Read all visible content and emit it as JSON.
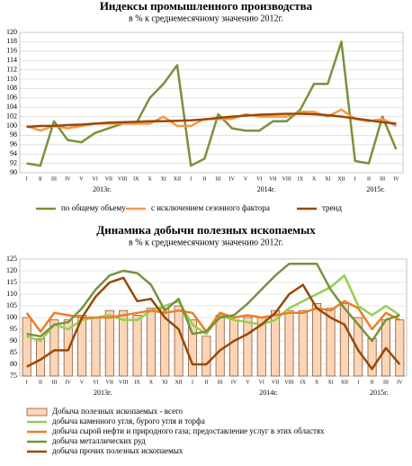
{
  "chart_data": [
    {
      "type": "line",
      "title": "Индексы промышленного производства",
      "subtitle": "в % к среднемесячному значению 2012г.",
      "categories": [
        "I",
        "II",
        "III",
        "IV",
        "V",
        "VI",
        "VII",
        "VIII",
        "IX",
        "X",
        "XI",
        "XII",
        "I",
        "II",
        "III",
        "IV",
        "V",
        "VI",
        "VII",
        "VIII",
        "IX",
        "X",
        "XI",
        "XII",
        "I",
        "II",
        "III",
        "IV"
      ],
      "groups": [
        "2013г.",
        "2014г.",
        "2015г."
      ],
      "ylim": [
        90,
        120
      ],
      "yticks": [
        90,
        92,
        94,
        96,
        98,
        100,
        102,
        104,
        106,
        108,
        110,
        112,
        114,
        116,
        118,
        120
      ],
      "grid": true,
      "legend": "bottom",
      "legend_orientation": "row",
      "series": [
        {
          "name": "по общему объему",
          "type": "line",
          "color": "#77933c",
          "values": [
            92,
            91.5,
            101,
            97,
            96.5,
            98.5,
            99.5,
            100.5,
            100.5,
            106,
            109,
            113,
            91.5,
            93,
            102.5,
            99.5,
            99,
            99,
            101,
            101,
            103.5,
            109,
            109,
            118,
            92.5,
            92,
            102,
            95
          ]
        },
        {
          "name": "с исключением  сезонного фактора",
          "type": "line",
          "color": "#f79646",
          "values": [
            100,
            99,
            100,
            99.5,
            100,
            100.5,
            100.5,
            100.5,
            100.5,
            100.5,
            102,
            100,
            100,
            101.5,
            101.5,
            101.5,
            102.5,
            102,
            102,
            102,
            103,
            103,
            102,
            103.5,
            101.5,
            101,
            101.5,
            100
          ]
        },
        {
          "name": "тренд",
          "type": "line",
          "color": "#984807",
          "values": [
            99.8,
            100,
            100,
            100.2,
            100.3,
            100.5,
            100.7,
            100.8,
            100.9,
            101,
            101,
            101.1,
            101.2,
            101.4,
            101.7,
            102,
            102.2,
            102.4,
            102.5,
            102.6,
            102.6,
            102.5,
            102.3,
            102,
            101.6,
            101.2,
            100.8,
            100.5
          ]
        }
      ]
    },
    {
      "type": "bar",
      "title": "Динамика добычи полезных ископаемых",
      "subtitle": "в % к среднемесячному значению 2012г.",
      "categories": [
        "I",
        "II",
        "III",
        "IV",
        "V",
        "VI",
        "VII",
        "VIII",
        "IX",
        "X",
        "XI",
        "XII",
        "I",
        "II",
        "III",
        "IV",
        "V",
        "VI",
        "VII",
        "VIII",
        "IX",
        "X",
        "XI",
        "XII",
        "I",
        "II",
        "III",
        "IV"
      ],
      "groups": [
        "2013г.",
        "2014г.",
        "2015г."
      ],
      "ylim": [
        75,
        125
      ],
      "yticks": [
        75,
        80,
        85,
        90,
        95,
        100,
        105,
        110,
        115,
        120,
        125
      ],
      "grid": true,
      "legend": "bottom",
      "legend_orientation": "column",
      "series": [
        {
          "name": "Добыча полезных ископаемых - всего",
          "type": "bar",
          "color": "#fbd5b5",
          "values": [
            100,
            91,
            99,
            99,
            101,
            100,
            103,
            103,
            101,
            104,
            104,
            105,
            99,
            92,
            101,
            99,
            100,
            100,
            103,
            103,
            103,
            106,
            104,
            106,
            100,
            91,
            99,
            99
          ]
        },
        {
          "name": "добыча каменного угля, бурого угля и торфа",
          "type": "line",
          "color": "#92d050",
          "values": [
            92,
            90,
            97,
            95,
            99,
            100,
            101,
            99,
            99,
            103,
            105,
            107,
            97,
            93,
            101,
            99,
            98,
            97,
            99,
            104,
            107,
            110,
            113,
            118,
            105,
            101,
            105,
            101
          ]
        },
        {
          "name": "добыча сырой нефти и природного газа; предоставление  услуг в этих областях",
          "type": "line",
          "color": "#f07c22",
          "values": [
            102,
            94,
            102,
            101,
            100,
            100,
            100,
            101,
            102,
            103,
            102,
            103,
            102,
            94,
            102,
            100,
            101,
            100,
            101,
            102,
            102,
            104,
            103,
            107,
            104,
            95,
            102,
            99
          ]
        },
        {
          "name": "добыча металлических руд",
          "type": "line",
          "color": "#77933c",
          "values": [
            93,
            92,
            97,
            98,
            104,
            112,
            118,
            120,
            119,
            114,
            103,
            108,
            93,
            94,
            100,
            101,
            106,
            112,
            118,
            123,
            123,
            123,
            112,
            104,
            97,
            90,
            99,
            101
          ]
        },
        {
          "name": "добыча прочих полезных ископаемых",
          "type": "line",
          "color": "#984807",
          "values": [
            79,
            82,
            86,
            86,
            100,
            109,
            115,
            117,
            107,
            108,
            100,
            95,
            80,
            80,
            86,
            90,
            93,
            97,
            102,
            110,
            114,
            104,
            100,
            97,
            86,
            78,
            87,
            80
          ]
        }
      ]
    }
  ]
}
